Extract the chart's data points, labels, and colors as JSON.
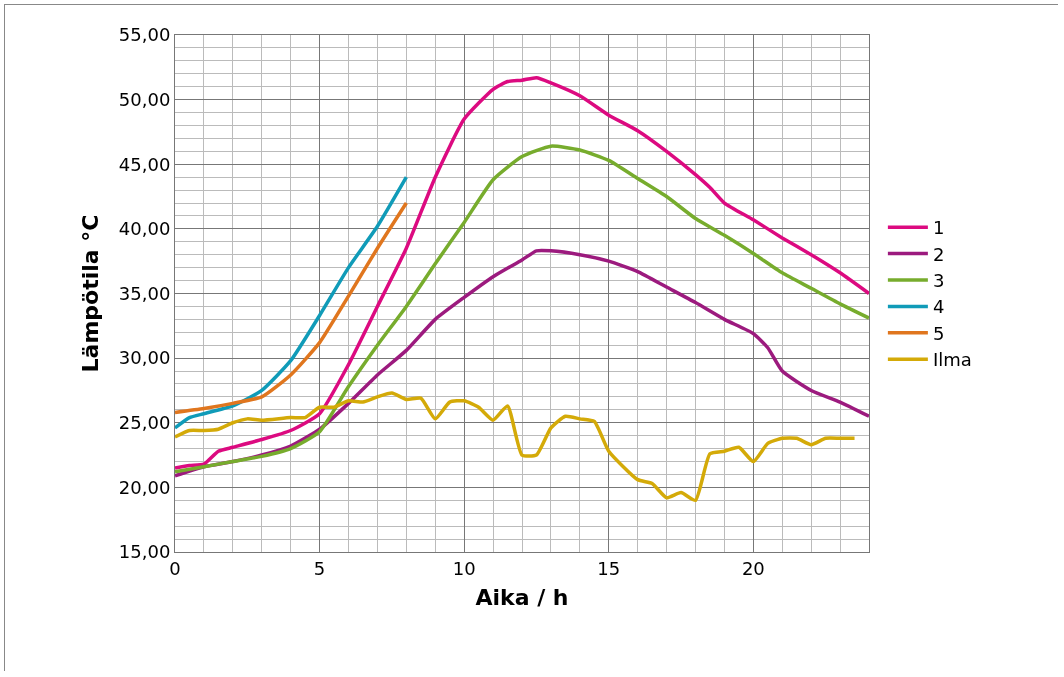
{
  "chart_data": {
    "type": "line",
    "xlabel": "Aika / h",
    "ylabel": "Lämpötila °C",
    "xlim": [
      0,
      24
    ],
    "xticks": [
      0,
      5,
      10,
      15,
      20
    ],
    "ylim": [
      15,
      55
    ],
    "yticks": [
      {
        "value": 15,
        "label": "15,00"
      },
      {
        "value": 20,
        "label": "20,00"
      },
      {
        "value": 25,
        "label": "25,00"
      },
      {
        "value": 30,
        "label": "30,00"
      },
      {
        "value": 35,
        "label": "35,00"
      },
      {
        "value": 40,
        "label": "40,00"
      },
      {
        "value": 45,
        "label": "45,00"
      },
      {
        "value": 50,
        "label": "50,00"
      },
      {
        "value": 55,
        "label": "55,00"
      }
    ],
    "grid": true,
    "legend": "right",
    "marker": "none",
    "line_style": "solid",
    "series": [
      {
        "name": "1",
        "color": "#dc0a80",
        "x": [
          0,
          0.5,
          1,
          1.5,
          2,
          3,
          4,
          5,
          6,
          7,
          8,
          9,
          10,
          11,
          11.5,
          12,
          12.5,
          13,
          14,
          15,
          16,
          17,
          18,
          18.5,
          19,
          20,
          21,
          22,
          23,
          24
        ],
        "values": [
          21.5,
          21.7,
          21.8,
          22.8,
          23.1,
          23.7,
          24.4,
          25.7,
          29.5,
          34,
          38.5,
          44,
          48.5,
          50.8,
          51.4,
          51.5,
          51.7,
          51.3,
          50.3,
          48.8,
          47.6,
          46,
          44.2,
          43.2,
          42,
          40.7,
          39.3,
          38,
          36.6,
          35
        ]
      },
      {
        "name": "2",
        "color": "#9c1a7e",
        "x": [
          0,
          1,
          2,
          3,
          4,
          5,
          6,
          7,
          8,
          9,
          10,
          11,
          12,
          12.5,
          13,
          14,
          15,
          16,
          17,
          18,
          19,
          20,
          20.5,
          21,
          22,
          23,
          24
        ],
        "values": [
          20.9,
          21.6,
          22,
          22.5,
          23.2,
          24.5,
          26.5,
          28.7,
          30.6,
          33,
          34.7,
          36.3,
          37.6,
          38.3,
          38.3,
          38,
          37.5,
          36.7,
          35.5,
          34.3,
          33,
          31.9,
          30.8,
          29,
          27.5,
          26.6,
          25.5
        ]
      },
      {
        "name": "3",
        "color": "#77ac2d",
        "x": [
          0,
          1,
          2,
          3,
          4,
          5,
          6,
          7,
          8,
          9,
          10,
          11,
          12,
          13,
          14,
          15,
          16,
          17,
          18,
          19,
          20,
          21,
          22,
          23,
          24
        ],
        "values": [
          21.2,
          21.6,
          22,
          22.4,
          23,
          24.3,
          27.8,
          31,
          34,
          37.3,
          40.5,
          43.8,
          45.6,
          46.4,
          46.1,
          45.3,
          43.9,
          42.5,
          40.8,
          39.5,
          38.1,
          36.6,
          35.4,
          34.2,
          33.1
        ]
      },
      {
        "name": "4",
        "color": "#109bb8",
        "x": [
          0,
          0.5,
          1,
          2,
          3,
          4,
          5,
          6,
          7,
          8
        ],
        "values": [
          24.6,
          25.4,
          25.7,
          26.3,
          27.5,
          29.8,
          33.3,
          37,
          40.2,
          44
        ]
      },
      {
        "name": "5",
        "color": "#e0761e",
        "x": [
          0,
          1,
          2,
          3,
          4,
          5,
          6,
          7,
          8
        ],
        "values": [
          25.8,
          26.1,
          26.5,
          27,
          28.7,
          31.2,
          34.8,
          38.5,
          42
        ]
      },
      {
        "name": "Ilma",
        "color": "#d4aa08",
        "x": [
          0,
          0.5,
          1,
          1.5,
          2,
          2.5,
          3,
          4,
          4.5,
          5,
          5.5,
          6,
          6.5,
          7,
          7.5,
          8,
          8.5,
          9,
          9.5,
          10,
          10.5,
          11,
          11.5,
          12,
          12.5,
          13,
          13.5,
          14,
          14.5,
          15,
          16,
          16.5,
          17,
          17.5,
          18,
          18.5,
          19,
          19.5,
          20,
          20.5,
          21,
          21.5,
          22,
          22.5,
          23,
          23.5
        ],
        "values": [
          23.9,
          24.4,
          24.4,
          24.5,
          25,
          25.3,
          25.2,
          25.4,
          25.4,
          26.2,
          26.2,
          26.7,
          26.6,
          27,
          27.3,
          26.8,
          26.9,
          25.3,
          26.6,
          26.7,
          26.2,
          25.2,
          26.3,
          22.5,
          22.5,
          24.6,
          25.5,
          25.3,
          25.1,
          22.8,
          20.6,
          20.3,
          19.2,
          19.6,
          19,
          22.6,
          22.8,
          23.1,
          22,
          23.4,
          23.8,
          23.8,
          23.3,
          23.8,
          23.8,
          23.8
        ]
      }
    ]
  }
}
